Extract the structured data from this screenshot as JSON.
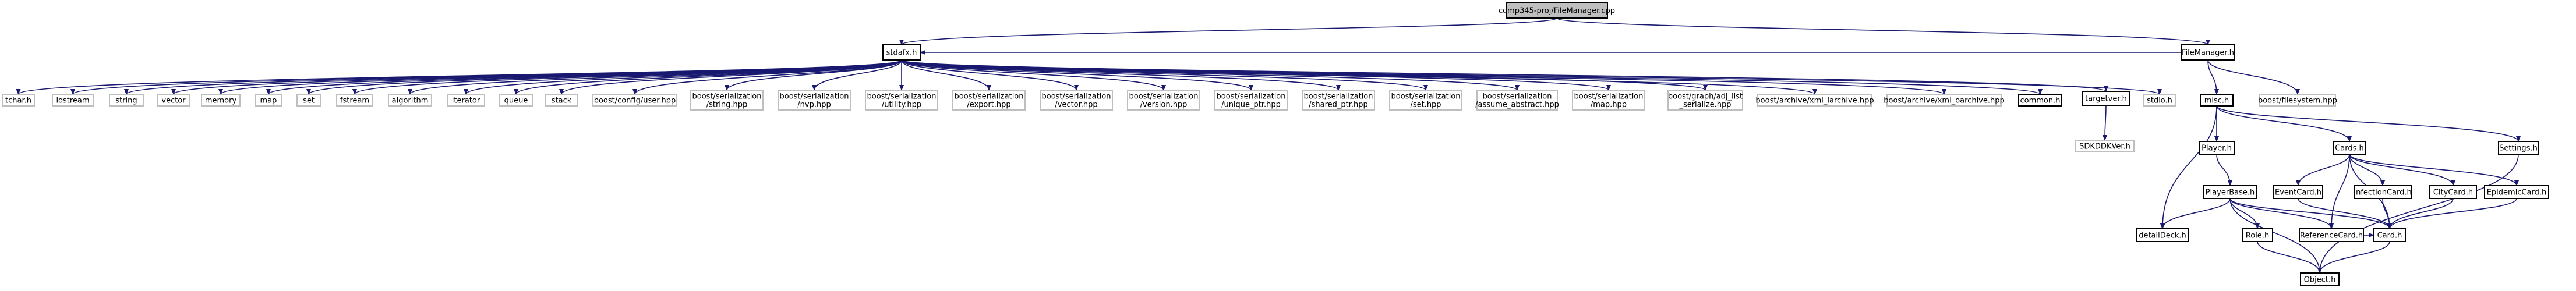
{
  "nodes": {
    "root": {
      "lines": [
        "comp345-proj/FileManager.cpp"
      ],
      "style": "root"
    },
    "stdafx": {
      "lines": [
        "stdafx.h"
      ],
      "style": "local"
    },
    "filemanager": {
      "lines": [
        "FileManager.h"
      ],
      "style": "local"
    },
    "tchar": {
      "lines": [
        "tchar.h"
      ],
      "style": "system"
    },
    "iostream": {
      "lines": [
        "iostream"
      ],
      "style": "system"
    },
    "string": {
      "lines": [
        "string"
      ],
      "style": "system"
    },
    "vector": {
      "lines": [
        "vector"
      ],
      "style": "system"
    },
    "memory": {
      "lines": [
        "memory"
      ],
      "style": "system"
    },
    "map": {
      "lines": [
        "map"
      ],
      "style": "system"
    },
    "set": {
      "lines": [
        "set"
      ],
      "style": "system"
    },
    "fstream": {
      "lines": [
        "fstream"
      ],
      "style": "system"
    },
    "algorithm": {
      "lines": [
        "algorithm"
      ],
      "style": "system"
    },
    "iterator": {
      "lines": [
        "iterator"
      ],
      "style": "system"
    },
    "queue": {
      "lines": [
        "queue"
      ],
      "style": "system"
    },
    "stack": {
      "lines": [
        "stack"
      ],
      "style": "system"
    },
    "b_config_user": {
      "lines": [
        "boost/config/user.hpp"
      ],
      "style": "system"
    },
    "b_ser_string": {
      "lines": [
        "boost/serialization",
        "/string.hpp"
      ],
      "style": "system"
    },
    "b_ser_nvp": {
      "lines": [
        "boost/serialization",
        "/nvp.hpp"
      ],
      "style": "system"
    },
    "b_ser_utility": {
      "lines": [
        "boost/serialization",
        "/utility.hpp"
      ],
      "style": "system"
    },
    "b_ser_export": {
      "lines": [
        "boost/serialization",
        "/export.hpp"
      ],
      "style": "system"
    },
    "b_ser_vector": {
      "lines": [
        "boost/serialization",
        "/vector.hpp"
      ],
      "style": "system"
    },
    "b_ser_version": {
      "lines": [
        "boost/serialization",
        "/version.hpp"
      ],
      "style": "system"
    },
    "b_ser_unique": {
      "lines": [
        "boost/serialization",
        "/unique_ptr.hpp"
      ],
      "style": "system"
    },
    "b_ser_shared": {
      "lines": [
        "boost/serialization",
        "/shared_ptr.hpp"
      ],
      "style": "system"
    },
    "b_ser_set": {
      "lines": [
        "boost/serialization",
        "/set.hpp"
      ],
      "style": "system"
    },
    "b_ser_assume": {
      "lines": [
        "boost/serialization",
        "/assume_abstract.hpp"
      ],
      "style": "system"
    },
    "b_ser_map": {
      "lines": [
        "boost/serialization",
        "/map.hpp"
      ],
      "style": "system"
    },
    "b_graph_adj": {
      "lines": [
        "boost/graph/adj_list",
        "_serialize.hpp"
      ],
      "style": "system"
    },
    "b_xml_iarchive": {
      "lines": [
        "boost/archive/xml_iarchive.hpp"
      ],
      "style": "system"
    },
    "b_xml_oarchive": {
      "lines": [
        "boost/archive/xml_oarchive.hpp"
      ],
      "style": "system"
    },
    "common": {
      "lines": [
        "common.h"
      ],
      "style": "local"
    },
    "targetver": {
      "lines": [
        "targetver.h"
      ],
      "style": "local"
    },
    "stdio": {
      "lines": [
        "stdio.h"
      ],
      "style": "system"
    },
    "sdkddkver": {
      "lines": [
        "SDKDDKVer.h"
      ],
      "style": "system"
    },
    "misc": {
      "lines": [
        "misc.h"
      ],
      "style": "local"
    },
    "b_filesystem": {
      "lines": [
        "boost/filesystem.hpp"
      ],
      "style": "system"
    },
    "player": {
      "lines": [
        "Player.h"
      ],
      "style": "local"
    },
    "cards": {
      "lines": [
        "Cards.h"
      ],
      "style": "local"
    },
    "settings": {
      "lines": [
        "Settings.h"
      ],
      "style": "local"
    },
    "playerbase": {
      "lines": [
        "PlayerBase.h"
      ],
      "style": "local"
    },
    "eventcard": {
      "lines": [
        "EventCard.h"
      ],
      "style": "local"
    },
    "infectioncard": {
      "lines": [
        "InfectionCard.h"
      ],
      "style": "local"
    },
    "citycard": {
      "lines": [
        "CityCard.h"
      ],
      "style": "local"
    },
    "epidemiccard": {
      "lines": [
        "EpidemicCard.h"
      ],
      "style": "local"
    },
    "role": {
      "lines": [
        "Role.h"
      ],
      "style": "local"
    },
    "referencecard": {
      "lines": [
        "ReferenceCard.h"
      ],
      "style": "local"
    },
    "card": {
      "lines": [
        "Card.h"
      ],
      "style": "local"
    },
    "discard": {
      "lines": [
        "detailDeck.h"
      ],
      "style": "local"
    },
    "object": {
      "lines": [
        "Object.h"
      ],
      "style": "local"
    }
  },
  "edges": [
    [
      "root",
      "stdafx"
    ],
    [
      "root",
      "filemanager"
    ],
    [
      "stdafx",
      "tchar"
    ],
    [
      "stdafx",
      "iostream"
    ],
    [
      "stdafx",
      "string"
    ],
    [
      "stdafx",
      "vector"
    ],
    [
      "stdafx",
      "memory"
    ],
    [
      "stdafx",
      "map"
    ],
    [
      "stdafx",
      "set"
    ],
    [
      "stdafx",
      "fstream"
    ],
    [
      "stdafx",
      "algorithm"
    ],
    [
      "stdafx",
      "iterator"
    ],
    [
      "stdafx",
      "queue"
    ],
    [
      "stdafx",
      "stack"
    ],
    [
      "stdafx",
      "b_config_user"
    ],
    [
      "stdafx",
      "b_ser_string"
    ],
    [
      "stdafx",
      "b_ser_nvp"
    ],
    [
      "stdafx",
      "b_ser_utility"
    ],
    [
      "stdafx",
      "b_ser_export"
    ],
    [
      "stdafx",
      "b_ser_vector"
    ],
    [
      "stdafx",
      "b_ser_version"
    ],
    [
      "stdafx",
      "b_ser_unique"
    ],
    [
      "stdafx",
      "b_ser_shared"
    ],
    [
      "stdafx",
      "b_ser_set"
    ],
    [
      "stdafx",
      "b_ser_assume"
    ],
    [
      "stdafx",
      "b_ser_map"
    ],
    [
      "stdafx",
      "b_graph_adj"
    ],
    [
      "stdafx",
      "b_xml_iarchive"
    ],
    [
      "stdafx",
      "b_xml_oarchive"
    ],
    [
      "stdafx",
      "common"
    ],
    [
      "stdafx",
      "targetver"
    ],
    [
      "stdafx",
      "stdio"
    ],
    [
      "targetver",
      "sdkddkver"
    ],
    [
      "filemanager",
      "stdafx"
    ],
    [
      "filemanager",
      "misc"
    ],
    [
      "filemanager",
      "b_filesystem"
    ],
    [
      "misc",
      "player"
    ],
    [
      "misc",
      "cards"
    ],
    [
      "misc",
      "settings"
    ],
    [
      "misc",
      "discard"
    ],
    [
      "player",
      "playerbase"
    ],
    [
      "playerbase",
      "role"
    ],
    [
      "playerbase",
      "referencecard"
    ],
    [
      "playerbase",
      "card"
    ],
    [
      "playerbase",
      "discard"
    ],
    [
      "playerbase",
      "object"
    ],
    [
      "cards",
      "eventcard"
    ],
    [
      "cards",
      "infectioncard"
    ],
    [
      "cards",
      "citycard"
    ],
    [
      "cards",
      "epidemiccard"
    ],
    [
      "cards",
      "referencecard"
    ],
    [
      "cards",
      "card"
    ],
    [
      "eventcard",
      "card"
    ],
    [
      "infectioncard",
      "card"
    ],
    [
      "citycard",
      "card"
    ],
    [
      "epidemiccard",
      "card"
    ],
    [
      "role",
      "object"
    ],
    [
      "referencecard",
      "card"
    ],
    [
      "card",
      "object"
    ],
    [
      "settings",
      "object"
    ]
  ],
  "colors": {
    "edge": "#191970",
    "text": "#000000",
    "local_border": "#000000",
    "system_border": "#bfbfbf",
    "root_fill": "#bfbfbf",
    "fill": "#ffffff"
  }
}
